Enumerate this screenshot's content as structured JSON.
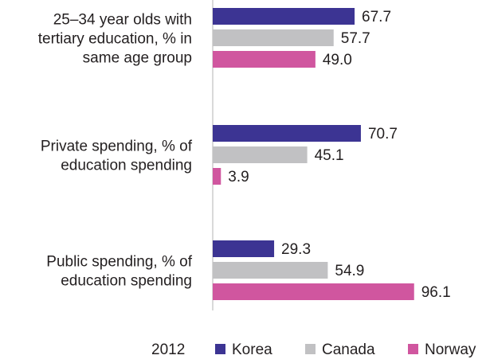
{
  "chart_data": {
    "type": "bar",
    "orientation": "horizontal",
    "categories": [
      [
        "25–34 year olds with",
        "tertiary education, % in",
        "same age group"
      ],
      [
        "Private spending, % of",
        "education spending"
      ],
      [
        "Public spending, % of",
        "education spending"
      ]
    ],
    "series": [
      {
        "name": "Korea",
        "color": "#3c3493",
        "values": [
          67.7,
          70.7,
          29.3
        ]
      },
      {
        "name": "Canada",
        "color": "#c1c1c3",
        "values": [
          57.7,
          45.1,
          54.9
        ]
      },
      {
        "name": "Norway",
        "color": "#d0569f",
        "values": [
          49.0,
          3.9,
          96.1
        ]
      }
    ],
    "value_labels": [
      [
        "67.7",
        "70.7",
        "29.3"
      ],
      [
        "57.7",
        "45.1",
        "54.9"
      ],
      [
        "49.0",
        "3.9",
        "96.1"
      ]
    ],
    "xlim": [
      0,
      100
    ],
    "grid": false,
    "legend_placement": "bottom"
  },
  "legend": {
    "year": "2012",
    "items": [
      {
        "label": "Korea",
        "color": "#3c3493"
      },
      {
        "label": "Canada",
        "color": "#c1c1c3"
      },
      {
        "label": "Norway",
        "color": "#d0569f"
      }
    ]
  }
}
